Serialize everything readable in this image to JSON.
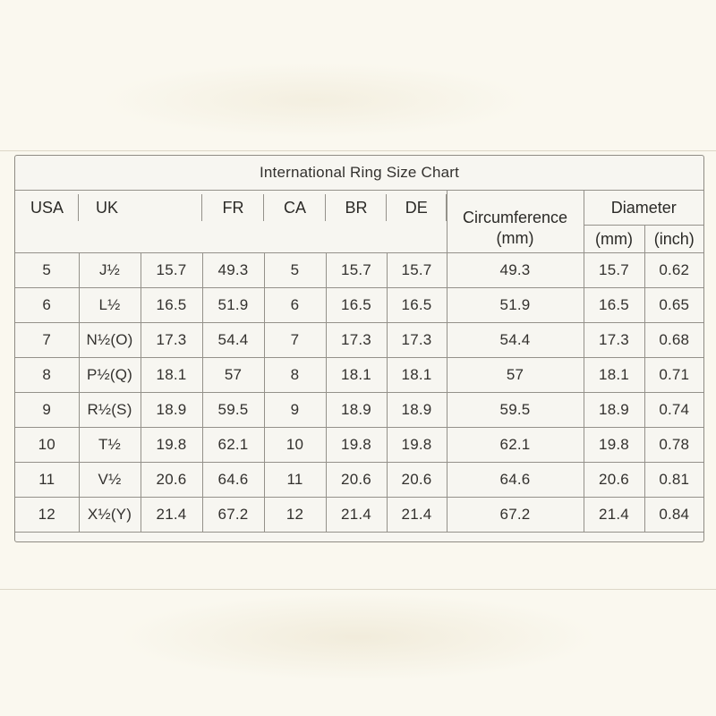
{
  "title": "International Ring Size Chart",
  "table": {
    "headers": {
      "usa": "USA",
      "uk": "UK",
      "fr": "FR",
      "ca": "CA",
      "br": "BR",
      "de": "DE",
      "circumference_line1": "Circumference",
      "circumference_line2": "(mm)",
      "diameter": "Diameter",
      "diameter_mm": "(mm)",
      "diameter_inch": "(inch)"
    },
    "rows": [
      {
        "usa": "5",
        "uk_letter": "J½",
        "uk_mm": "15.7",
        "fr": "49.3",
        "ca": "5",
        "br": "15.7",
        "de": "15.7",
        "circumference_mm": "49.3",
        "diameter_mm": "15.7",
        "diameter_inch": "0.62"
      },
      {
        "usa": "6",
        "uk_letter": "L½",
        "uk_mm": "16.5",
        "fr": "51.9",
        "ca": "6",
        "br": "16.5",
        "de": "16.5",
        "circumference_mm": "51.9",
        "diameter_mm": "16.5",
        "diameter_inch": "0.65"
      },
      {
        "usa": "7",
        "uk_letter": "N½(O)",
        "uk_mm": "17.3",
        "fr": "54.4",
        "ca": "7",
        "br": "17.3",
        "de": "17.3",
        "circumference_mm": "54.4",
        "diameter_mm": "17.3",
        "diameter_inch": "0.68"
      },
      {
        "usa": "8",
        "uk_letter": "P½(Q)",
        "uk_mm": "18.1",
        "fr": "57",
        "ca": "8",
        "br": "18.1",
        "de": "18.1",
        "circumference_mm": "57",
        "diameter_mm": "18.1",
        "diameter_inch": "0.71"
      },
      {
        "usa": "9",
        "uk_letter": "R½(S)",
        "uk_mm": "18.9",
        "fr": "59.5",
        "ca": "9",
        "br": "18.9",
        "de": "18.9",
        "circumference_mm": "59.5",
        "diameter_mm": "18.9",
        "diameter_inch": "0.74"
      },
      {
        "usa": "10",
        "uk_letter": "T½",
        "uk_mm": "19.8",
        "fr": "62.1",
        "ca": "10",
        "br": "19.8",
        "de": "19.8",
        "circumference_mm": "62.1",
        "diameter_mm": "19.8",
        "diameter_inch": "0.78"
      },
      {
        "usa": "11",
        "uk_letter": "V½",
        "uk_mm": "20.6",
        "fr": "64.6",
        "ca": "11",
        "br": "20.6",
        "de": "20.6",
        "circumference_mm": "64.6",
        "diameter_mm": "20.6",
        "diameter_inch": "0.81"
      },
      {
        "usa": "12",
        "uk_letter": "X½(Y)",
        "uk_mm": "21.4",
        "fr": "67.2",
        "ca": "12",
        "br": "21.4",
        "de": "21.4",
        "circumference_mm": "67.2",
        "diameter_mm": "21.4",
        "diameter_inch": "0.84"
      }
    ]
  },
  "colors": {
    "page_background": "#faf8ef",
    "table_background": "#f7f6f1",
    "grid_line": "#94918a",
    "text": "#33312e"
  }
}
